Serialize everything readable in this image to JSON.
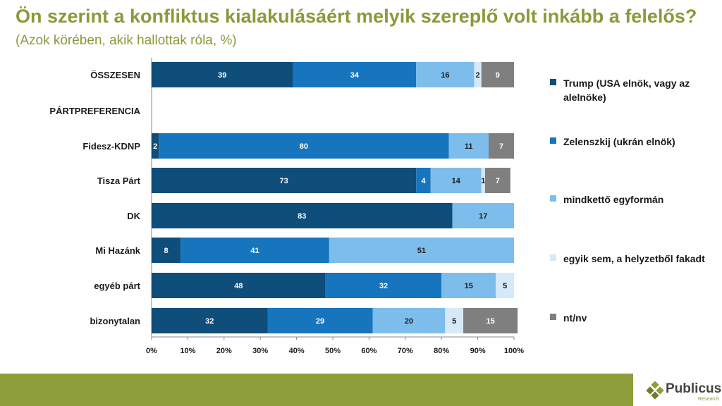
{
  "header": {
    "title": "Ön szerint a konfliktus kialakulásáért melyik szereplő volt inkább a felelős?",
    "subtitle": "(Azok körében, akik hallottak róla, %)"
  },
  "colors": {
    "trump": "#0f4d7a",
    "zelenszkij": "#1775be",
    "mindketto": "#7dbdec",
    "egyik_sem": "#d6e9f8",
    "ntnv": "#7f7f7f",
    "brand": "#8e9e3a"
  },
  "chart_data": {
    "type": "bar",
    "orientation": "horizontal",
    "stacked": true,
    "categories": [
      "ÖSSZESEN",
      "PÁRTPREFERENCIA",
      "Fidesz-KDNP",
      "Tisza Párt",
      "DK",
      "Mi Hazánk",
      "egyéb párt",
      "bizonytalan"
    ],
    "series": [
      {
        "name": "Trump (USA elnök, vagy az alelnöke)",
        "color": "#0f4d7a",
        "values": [
          39,
          null,
          2,
          73,
          83,
          8,
          48,
          32
        ]
      },
      {
        "name": "Zelenszkij (ukrán elnök)",
        "color": "#1775be",
        "values": [
          34,
          null,
          80,
          4,
          null,
          41,
          32,
          29
        ]
      },
      {
        "name": "mindkettő egyformán",
        "color": "#7dbdec",
        "values": [
          16,
          null,
          11,
          14,
          17,
          51,
          15,
          20
        ]
      },
      {
        "name": "egyik sem, a helyzetből fakadt",
        "color": "#d6e9f8",
        "values": [
          2,
          null,
          null,
          1,
          null,
          null,
          5,
          5
        ]
      },
      {
        "name": "nt/nv",
        "color": "#7f7f7f",
        "values": [
          9,
          null,
          7,
          7,
          null,
          null,
          null,
          15
        ]
      }
    ],
    "xlim": [
      0,
      100
    ],
    "xticks": [
      "0%",
      "10%",
      "20%",
      "30%",
      "40%",
      "50%",
      "60%",
      "70%",
      "80%",
      "90%",
      "100%"
    ],
    "legend_position": "right"
  },
  "logo": {
    "name": "Publicus",
    "sub": "Research"
  }
}
